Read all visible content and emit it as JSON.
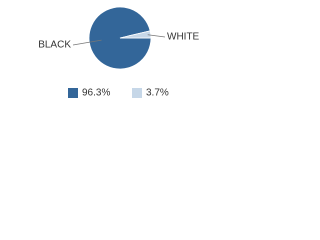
{
  "chart_data": {
    "type": "pie",
    "categories": [
      "BLACK",
      "WHITE"
    ],
    "values": [
      96.3,
      3.7
    ],
    "value_labels": [
      "96.3%",
      "3.7%"
    ],
    "colors": [
      "#336699",
      "#c6d7e8"
    ]
  }
}
